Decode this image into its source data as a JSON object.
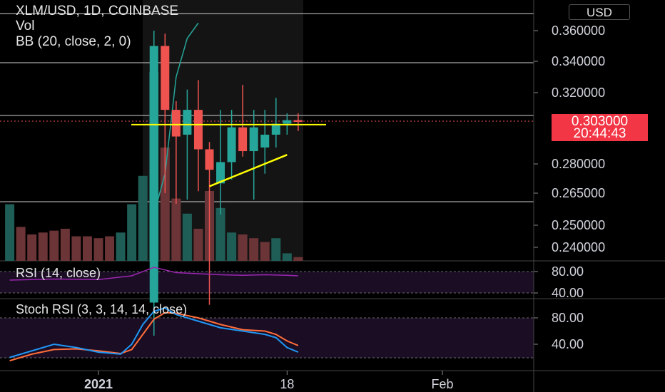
{
  "header": {
    "symbol_line": "XLM/USD, 1D, COINBASE",
    "vol_label": "Vol",
    "bb_label": "BB (20, close, 2, 0)",
    "currency_button": "USD"
  },
  "price_tag": {
    "price": "0.303000",
    "countdown": "20:44:43"
  },
  "rsi_panel": {
    "label": "RSI (14, close)",
    "ticks": [
      "80.00",
      "40.00"
    ]
  },
  "stoch_panel": {
    "label": "Stoch RSI (3, 3, 14, 14, close)",
    "ticks": [
      "80.00",
      "40.00"
    ]
  },
  "colors": {
    "up": "#26a69a",
    "down": "#ef5350",
    "drawing": "#ffff00",
    "bb": "#26a69a"
  },
  "chart_data": {
    "type": "candlestick",
    "title": "XLM/USD, 1D, COINBASE",
    "price_axis_labels": [
      "0.360000",
      "0.340000",
      "0.320000",
      "0.280000",
      "0.265000",
      "0.250000",
      "0.240000"
    ],
    "time_axis_labels": [
      "2021",
      "18",
      "Feb"
    ],
    "candles": [
      {
        "date": "2021-01-06",
        "open": 0.215,
        "high": 0.36,
        "low": 0.2,
        "close": 0.35
      },
      {
        "date": "2021-01-07",
        "open": 0.35,
        "high": 0.358,
        "low": 0.265,
        "close": 0.31
      },
      {
        "date": "2021-01-08",
        "open": 0.31,
        "high": 0.315,
        "low": 0.26,
        "close": 0.295
      },
      {
        "date": "2021-01-09",
        "open": 0.296,
        "high": 0.322,
        "low": 0.262,
        "close": 0.31
      },
      {
        "date": "2021-01-10",
        "open": 0.31,
        "high": 0.328,
        "low": 0.266,
        "close": 0.288
      },
      {
        "date": "2021-01-11",
        "open": 0.288,
        "high": 0.292,
        "low": 0.214,
        "close": 0.277
      },
      {
        "date": "2021-01-12",
        "open": 0.27,
        "high": 0.31,
        "low": 0.255,
        "close": 0.281
      },
      {
        "date": "2021-01-13",
        "open": 0.281,
        "high": 0.31,
        "low": 0.272,
        "close": 0.3
      },
      {
        "date": "2021-01-14",
        "open": 0.3,
        "high": 0.325,
        "low": 0.284,
        "close": 0.287
      },
      {
        "date": "2021-01-15",
        "open": 0.287,
        "high": 0.31,
        "low": 0.262,
        "close": 0.3
      },
      {
        "date": "2021-01-16",
        "open": 0.289,
        "high": 0.31,
        "low": 0.275,
        "close": 0.296
      },
      {
        "date": "2021-01-17",
        "open": 0.296,
        "high": 0.317,
        "low": 0.289,
        "close": 0.302
      },
      {
        "date": "2021-01-18",
        "open": 0.302,
        "high": 0.308,
        "low": 0.296,
        "close": 0.304
      },
      {
        "date": "2021-01-19",
        "open": 0.304,
        "high": 0.308,
        "low": 0.298,
        "close": 0.303
      }
    ],
    "volume": [
      {
        "date": "2020-12-24",
        "value": 30,
        "dir": "up"
      },
      {
        "date": "2020-12-25",
        "value": 18,
        "dir": "down"
      },
      {
        "date": "2020-12-26",
        "value": 14,
        "dir": "down"
      },
      {
        "date": "2020-12-27",
        "value": 15,
        "dir": "down"
      },
      {
        "date": "2020-12-28",
        "value": 16,
        "dir": "down"
      },
      {
        "date": "2020-12-29",
        "value": 17,
        "dir": "down"
      },
      {
        "date": "2020-12-30",
        "value": 13,
        "dir": "down"
      },
      {
        "date": "2020-12-31",
        "value": 13,
        "dir": "down"
      },
      {
        "date": "2021-01-01",
        "value": 12,
        "dir": "down"
      },
      {
        "date": "2021-01-02",
        "value": 13,
        "dir": "down"
      },
      {
        "date": "2021-01-03",
        "value": 15,
        "dir": "up"
      },
      {
        "date": "2021-01-04",
        "value": 30,
        "dir": "up"
      },
      {
        "date": "2021-01-05",
        "value": 45,
        "dir": "up"
      },
      {
        "date": "2021-01-06",
        "value": 100,
        "dir": "up"
      },
      {
        "date": "2021-01-07",
        "value": 60,
        "dir": "down"
      },
      {
        "date": "2021-01-08",
        "value": 33,
        "dir": "down"
      },
      {
        "date": "2021-01-09",
        "value": 25,
        "dir": "up"
      },
      {
        "date": "2021-01-10",
        "value": 17,
        "dir": "down"
      },
      {
        "date": "2021-01-11",
        "value": 37,
        "dir": "down"
      },
      {
        "date": "2021-01-12",
        "value": 28,
        "dir": "up"
      },
      {
        "date": "2021-01-13",
        "value": 15,
        "dir": "up"
      },
      {
        "date": "2021-01-14",
        "value": 14,
        "dir": "down"
      },
      {
        "date": "2021-01-15",
        "value": 12,
        "dir": "down"
      },
      {
        "date": "2021-01-16",
        "value": 10,
        "dir": "down"
      },
      {
        "date": "2021-01-17",
        "value": 12,
        "dir": "up"
      },
      {
        "date": "2021-01-18",
        "value": 4,
        "dir": "up"
      },
      {
        "date": "2021-01-19",
        "value": 2,
        "dir": "down"
      }
    ],
    "rsi": [
      {
        "date": "2020-12-24",
        "value": 64
      },
      {
        "date": "2020-12-28",
        "value": 66
      },
      {
        "date": "2021-01-01",
        "value": 65
      },
      {
        "date": "2021-01-04",
        "value": 72
      },
      {
        "date": "2021-01-06",
        "value": 88
      },
      {
        "date": "2021-01-08",
        "value": 78
      },
      {
        "date": "2021-01-10",
        "value": 76
      },
      {
        "date": "2021-01-12",
        "value": 74
      },
      {
        "date": "2021-01-14",
        "value": 73
      },
      {
        "date": "2021-01-16",
        "value": 74
      },
      {
        "date": "2021-01-18",
        "value": 73
      },
      {
        "date": "2021-01-19",
        "value": 72
      }
    ],
    "stoch_k": [
      {
        "date": "2020-12-24",
        "value": 20
      },
      {
        "date": "2020-12-26",
        "value": 30
      },
      {
        "date": "2020-12-28",
        "value": 40
      },
      {
        "date": "2020-12-30",
        "value": 35
      },
      {
        "date": "2021-01-01",
        "value": 28
      },
      {
        "date": "2021-01-03",
        "value": 25
      },
      {
        "date": "2021-01-04",
        "value": 40
      },
      {
        "date": "2021-01-05",
        "value": 70
      },
      {
        "date": "2021-01-06",
        "value": 90
      },
      {
        "date": "2021-01-07",
        "value": 95
      },
      {
        "date": "2021-01-08",
        "value": 85
      },
      {
        "date": "2021-01-10",
        "value": 75
      },
      {
        "date": "2021-01-12",
        "value": 65
      },
      {
        "date": "2021-01-14",
        "value": 60
      },
      {
        "date": "2021-01-16",
        "value": 55
      },
      {
        "date": "2021-01-17",
        "value": 50
      },
      {
        "date": "2021-01-18",
        "value": 35
      },
      {
        "date": "2021-01-19",
        "value": 28
      }
    ],
    "stoch_d": [
      {
        "date": "2020-12-24",
        "value": 15
      },
      {
        "date": "2020-12-26",
        "value": 25
      },
      {
        "date": "2020-12-28",
        "value": 32
      },
      {
        "date": "2020-12-30",
        "value": 33
      },
      {
        "date": "2021-01-01",
        "value": 30
      },
      {
        "date": "2021-01-03",
        "value": 26
      },
      {
        "date": "2021-01-04",
        "value": 32
      },
      {
        "date": "2021-01-05",
        "value": 55
      },
      {
        "date": "2021-01-06",
        "value": 78
      },
      {
        "date": "2021-01-07",
        "value": 88
      },
      {
        "date": "2021-01-08",
        "value": 87
      },
      {
        "date": "2021-01-10",
        "value": 80
      },
      {
        "date": "2021-01-12",
        "value": 70
      },
      {
        "date": "2021-01-14",
        "value": 62
      },
      {
        "date": "2021-01-16",
        "value": 60
      },
      {
        "date": "2021-01-17",
        "value": 55
      },
      {
        "date": "2021-01-18",
        "value": 45
      },
      {
        "date": "2021-01-19",
        "value": 38
      }
    ],
    "bb_line": [
      {
        "date": "2021-01-06",
        "value": 0.255
      },
      {
        "date": "2021-01-07",
        "value": 0.275
      },
      {
        "date": "2021-01-08",
        "value": 0.33
      },
      {
        "date": "2021-01-09",
        "value": 0.355
      },
      {
        "date": "2021-01-10",
        "value": 0.365
      }
    ],
    "support_line": {
      "price": 0.3015
    },
    "trendline": [
      {
        "date": "2021-01-11",
        "price": 0.2685
      },
      {
        "date": "2021-01-18",
        "price": 0.285
      }
    ],
    "current_price": 0.303
  }
}
